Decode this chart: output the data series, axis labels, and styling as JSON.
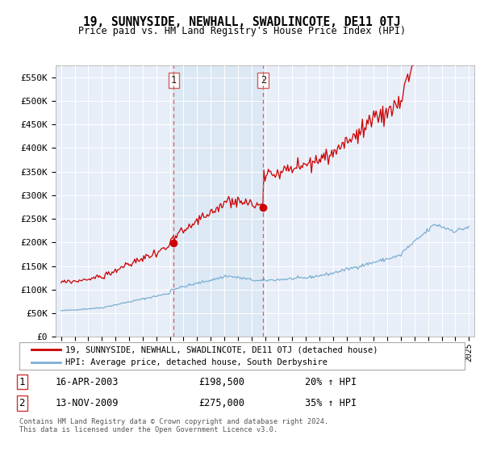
{
  "title": "19, SUNNYSIDE, NEWHALL, SWADLINCOTE, DE11 0TJ",
  "subtitle": "Price paid vs. HM Land Registry's House Price Index (HPI)",
  "legend_line1": "19, SUNNYSIDE, NEWHALL, SWADLINCOTE, DE11 0TJ (detached house)",
  "legend_line2": "HPI: Average price, detached house, South Derbyshire",
  "transaction1_date": "16-APR-2003",
  "transaction1_price": "£198,500",
  "transaction1_hpi": "20% ↑ HPI",
  "transaction2_date": "13-NOV-2009",
  "transaction2_price": "£275,000",
  "transaction2_hpi": "35% ↑ HPI",
  "footnote1": "Contains HM Land Registry data © Crown copyright and database right 2024.",
  "footnote2": "This data is licensed under the Open Government Licence v3.0.",
  "hpi_color": "#7bafd4",
  "price_color": "#cc0000",
  "vline_color": "#d06060",
  "shade_color": "#dce8f5",
  "background_color": "#e8eef8",
  "ylim": [
    0,
    575000
  ],
  "yticks": [
    0,
    50000,
    100000,
    150000,
    200000,
    250000,
    300000,
    350000,
    400000,
    450000,
    500000,
    550000
  ],
  "xlim_start": 1994.6,
  "xlim_end": 2025.4,
  "transaction1_x": 2003.29,
  "transaction1_y": 198500,
  "transaction2_x": 2009.87,
  "transaction2_y": 275000,
  "hpi_seed": 42,
  "price_seed": 99
}
